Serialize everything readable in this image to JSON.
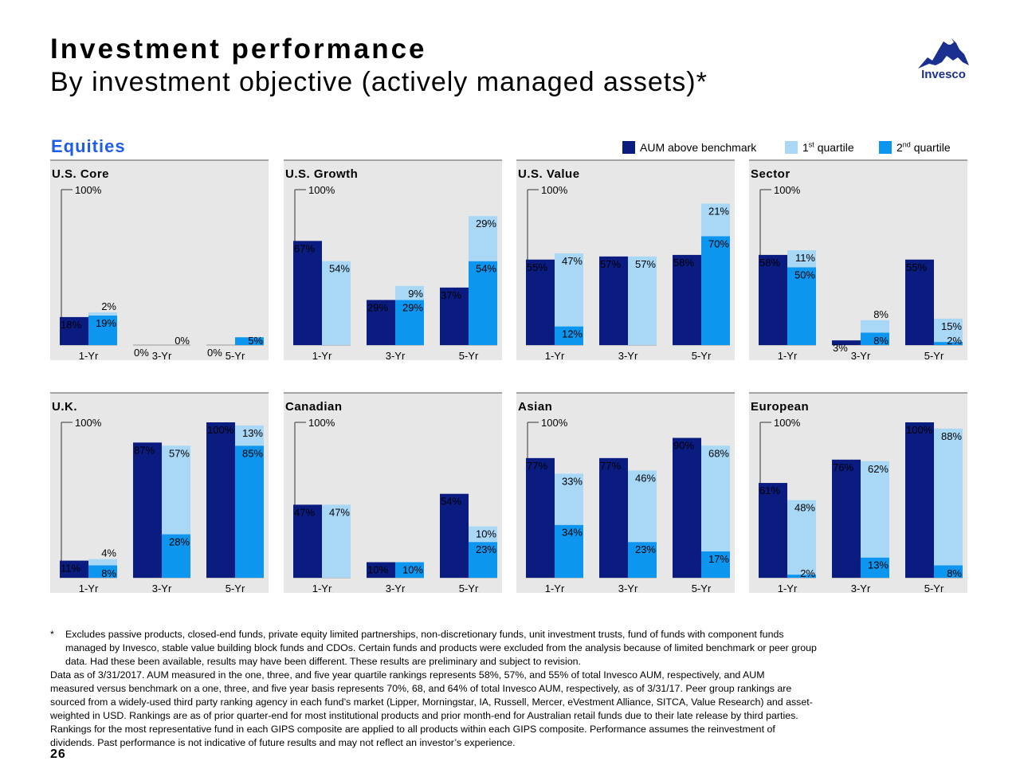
{
  "header": {
    "title": "Investment performance",
    "subtitle": "By investment objective (actively managed assets)*",
    "logo_text": "Invesco"
  },
  "section_title": "Equities",
  "legend": [
    {
      "label": "AUM above benchmark",
      "color": "#0b1c80"
    },
    {
      "label": "1",
      "sup": "st",
      "suffix": " quartile",
      "color": "#a9d8f7"
    },
    {
      "label": "2",
      "sup": "nd",
      "suffix": " quartile",
      "color": "#0c96f0"
    }
  ],
  "colors": {
    "aum": "#0b1c80",
    "q1": "#a9d8f7",
    "q2": "#0c96f0",
    "panel_bg": "#e7e7e7"
  },
  "chart_data": [
    {
      "type": "bar",
      "title": "U.S. Core",
      "ylim": [
        0,
        100
      ],
      "axis_top_label": "100%",
      "categories": [
        "1-Yr",
        "3-Yr",
        "5-Yr"
      ],
      "series": [
        {
          "name": "AUM above benchmark",
          "values": [
            18,
            0,
            0
          ],
          "labels": [
            "18%",
            "0%",
            "0%"
          ]
        },
        {
          "name": "1st quartile",
          "values": [
            2,
            0,
            0
          ],
          "labels": [
            "2%",
            "",
            ""
          ]
        },
        {
          "name": "2nd quartile",
          "values": [
            19,
            0,
            5
          ],
          "labels": [
            "19%",
            "0%",
            "5%"
          ]
        }
      ]
    },
    {
      "type": "bar",
      "title": "U.S. Growth",
      "ylim": [
        0,
        100
      ],
      "axis_top_label": "100%",
      "categories": [
        "1-Yr",
        "3-Yr",
        "5-Yr"
      ],
      "series": [
        {
          "name": "AUM above benchmark",
          "values": [
            67,
            29,
            37
          ],
          "labels": [
            "67%",
            "29%",
            "37%"
          ]
        },
        {
          "name": "1st quartile",
          "values": [
            54,
            9,
            29
          ],
          "labels": [
            "54%",
            "9%",
            "29%"
          ]
        },
        {
          "name": "2nd quartile",
          "values": [
            0,
            29,
            54
          ],
          "labels": [
            "",
            "29%",
            "54%"
          ]
        }
      ]
    },
    {
      "type": "bar",
      "title": "U.S. Value",
      "ylim": [
        0,
        100
      ],
      "axis_top_label": "100%",
      "categories": [
        "1-Yr",
        "3-Yr",
        "5-Yr"
      ],
      "series": [
        {
          "name": "AUM above benchmark",
          "values": [
            55,
            57,
            58
          ],
          "labels": [
            "55%",
            "57%",
            "58%"
          ]
        },
        {
          "name": "1st quartile",
          "values": [
            47,
            57,
            21
          ],
          "labels": [
            "47%",
            "57%",
            "21%"
          ]
        },
        {
          "name": "2nd quartile",
          "values": [
            12,
            0,
            70
          ],
          "labels": [
            "12%",
            "",
            "70%"
          ]
        }
      ]
    },
    {
      "type": "bar",
      "title": "Sector",
      "ylim": [
        0,
        100
      ],
      "axis_top_label": "100%",
      "categories": [
        "1-Yr",
        "3-Yr",
        "5-Yr"
      ],
      "series": [
        {
          "name": "AUM above benchmark",
          "values": [
            58,
            3,
            55
          ],
          "labels": [
            "58%",
            "3%",
            "55%"
          ]
        },
        {
          "name": "1st quartile",
          "values": [
            11,
            8,
            15
          ],
          "labels": [
            "11%",
            "8%",
            "15%"
          ]
        },
        {
          "name": "2nd quartile",
          "values": [
            50,
            8,
            2
          ],
          "labels": [
            "50%",
            "8%",
            "2%"
          ]
        }
      ]
    },
    {
      "type": "bar",
      "title": "U.K.",
      "ylim": [
        0,
        100
      ],
      "axis_top_label": "100%",
      "categories": [
        "1-Yr",
        "3-Yr",
        "5-Yr"
      ],
      "series": [
        {
          "name": "AUM above benchmark",
          "values": [
            11,
            87,
            100
          ],
          "labels": [
            "11%",
            "87%",
            "100%"
          ]
        },
        {
          "name": "1st quartile",
          "values": [
            4,
            57,
            13
          ],
          "labels": [
            "4%",
            "57%",
            "13%"
          ]
        },
        {
          "name": "2nd quartile",
          "values": [
            8,
            28,
            85
          ],
          "labels": [
            "8%",
            "28%",
            "85%"
          ]
        }
      ]
    },
    {
      "type": "bar",
      "title": "Canadian",
      "ylim": [
        0,
        100
      ],
      "axis_top_label": "100%",
      "categories": [
        "1-Yr",
        "3-Yr",
        "5-Yr"
      ],
      "series": [
        {
          "name": "AUM above benchmark",
          "values": [
            47,
            10,
            54
          ],
          "labels": [
            "47%",
            "10%",
            "54%"
          ]
        },
        {
          "name": "1st quartile",
          "values": [
            47,
            0,
            10
          ],
          "labels": [
            "47%",
            "",
            "10%"
          ]
        },
        {
          "name": "2nd quartile",
          "values": [
            0,
            10,
            23
          ],
          "labels": [
            "",
            "10%",
            "23%"
          ]
        }
      ]
    },
    {
      "type": "bar",
      "title": "Asian",
      "ylim": [
        0,
        100
      ],
      "axis_top_label": "100%",
      "categories": [
        "1-Yr",
        "3-Yr",
        "5-Yr"
      ],
      "series": [
        {
          "name": "AUM above benchmark",
          "values": [
            77,
            77,
            90
          ],
          "labels": [
            "77%",
            "77%",
            "90%"
          ]
        },
        {
          "name": "1st quartile",
          "values": [
            33,
            46,
            68
          ],
          "labels": [
            "33%",
            "46%",
            "68%"
          ]
        },
        {
          "name": "2nd quartile",
          "values": [
            34,
            23,
            17
          ],
          "labels": [
            "34%",
            "23%",
            "17%"
          ]
        }
      ]
    },
    {
      "type": "bar",
      "title": "European",
      "ylim": [
        0,
        100
      ],
      "axis_top_label": "100%",
      "categories": [
        "1-Yr",
        "3-Yr",
        "5-Yr"
      ],
      "series": [
        {
          "name": "AUM above benchmark",
          "values": [
            61,
            76,
            100
          ],
          "labels": [
            "61%",
            "76%",
            "100%"
          ]
        },
        {
          "name": "1st quartile",
          "values": [
            48,
            62,
            88
          ],
          "labels": [
            "48%",
            "62%",
            "88%"
          ]
        },
        {
          "name": "2nd quartile",
          "values": [
            2,
            13,
            8
          ],
          "labels": [
            "2%",
            "13%",
            "8%"
          ]
        }
      ]
    }
  ],
  "footnote": {
    "star": "*",
    "line1": "Excludes passive products, closed-end funds, private equity limited partnerships, non-discretionary funds, unit investment trusts, fund of funds with component funds",
    "line2": "managed by Invesco, stable value building block funds and CDOs. Certain funds and products were excluded from the analysis because of limited benchmark or peer group",
    "line3": "data. Had these been available, results may have been different. These results are preliminary and subject to revision.",
    "line4": "Data as of 3/31/2017. AUM measured in the one, three, and five year quartile rankings represents 58%, 57%, and 55% of total Invesco AUM, respectively, and AUM",
    "line5": "measured versus benchmark on a one, three, and five year basis represents 70%, 68, and 64% of total Invesco AUM, respectively, as of 3/31/17. Peer group rankings are",
    "line6": "sourced from a widely-used third party ranking agency in each fund’s market (Lipper, Morningstar, IA, Russell, Mercer, eVestment Alliance, SITCA, Value Research) and asset-",
    "line7": "weighted in USD. Rankings are as of prior quarter-end for most institutional products and prior month-end for Australian retail funds due to their late release by third parties.",
    "line8": "Rankings for the most representative fund in each GIPS composite are applied to all products within each GIPS composite. Performance assumes the reinvestment of",
    "line9": "dividends. Past performance is not indicative of future results and may not reflect an investor’s experience."
  },
  "page_number": "26"
}
